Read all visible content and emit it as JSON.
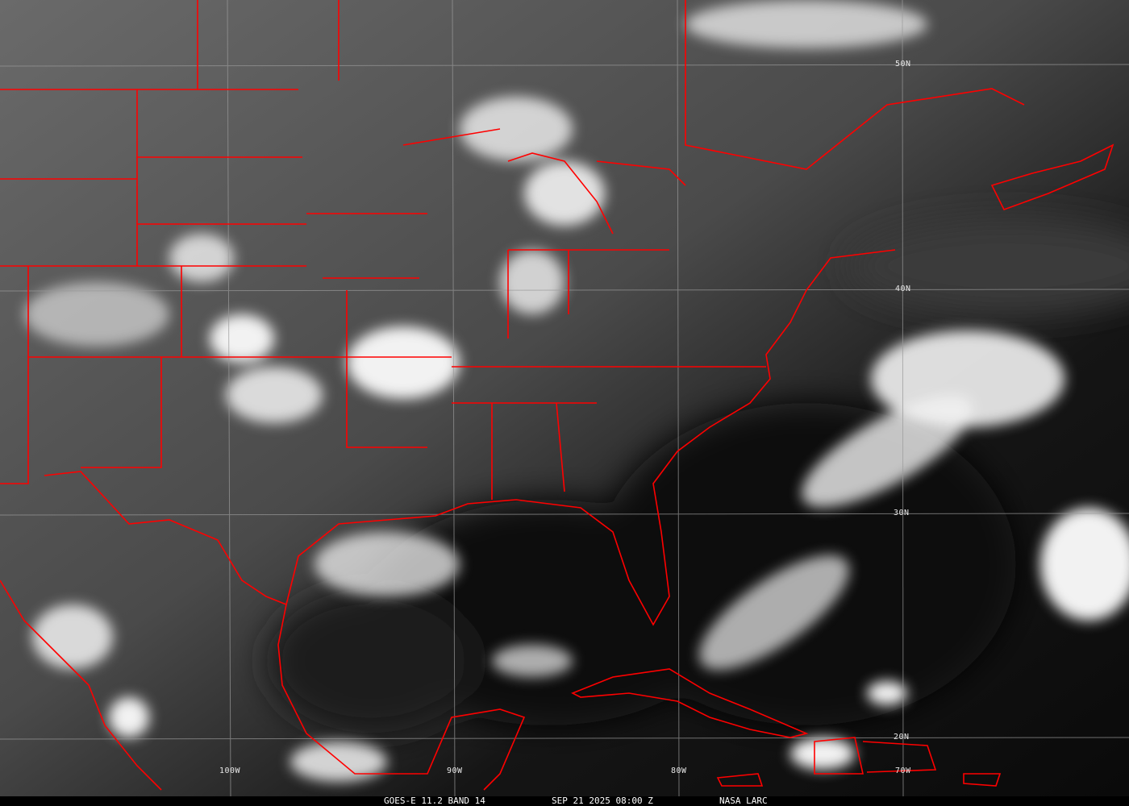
{
  "image": {
    "satellite": "GOES-E",
    "channel": "11.2 BAND 14",
    "timestamp": "SEP 21 2025 08:00 Z",
    "credit": "NASA LARC",
    "colors": {
      "borders": "#ff0000",
      "grid": "#9a9a9a",
      "clouds": "#ffffff",
      "ocean": "#0a0a0a",
      "land": "#555555"
    }
  },
  "grid": {
    "latitudes": [
      "50N",
      "40N",
      "30N",
      "20N"
    ],
    "longitudes": [
      "100W",
      "90W",
      "80W",
      "70W"
    ]
  }
}
